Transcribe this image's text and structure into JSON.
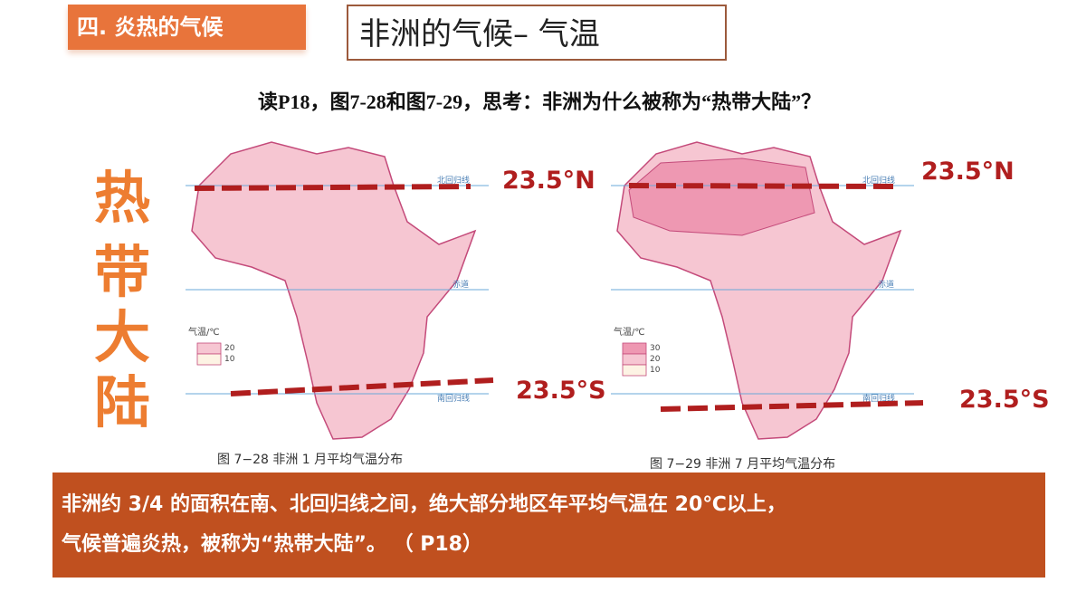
{
  "header": {
    "section": "四. 炎热的气候",
    "title": "非洲的气候– 气温"
  },
  "question": "读P18，图7-28和图7-29，思考：非洲为什么被称为“热带大陆”？",
  "side_label": [
    "热",
    "带",
    "大",
    "陆"
  ],
  "maps": [
    {
      "caption": "图 7−28   非洲 1 月平均气温分布",
      "legend_title": "气温/℃",
      "legend_values": [
        "20",
        "10"
      ],
      "tropic_n": "北回归线",
      "equator": "赤道",
      "tropic_s": "南回归线",
      "label_n": "23.5°N",
      "label_s": "23.5°S"
    },
    {
      "caption": "图 7−29   非洲 7 月平均气温分布",
      "legend_title": "气温/℃",
      "legend_values": [
        "30",
        "20",
        "10"
      ],
      "tropic_n": "北回归线",
      "equator": "赤道",
      "tropic_s": "南回归线",
      "label_n": "23.5°N",
      "label_s": "23.5°S"
    }
  ],
  "conclusion": [
    "非洲约 3/4 的面积在南、北回归线之间，绝大部分地区年平均气温在 20℃以上，",
    "气候普遍炎热，被称为“热带大陆”。 （    P18）"
  ]
}
